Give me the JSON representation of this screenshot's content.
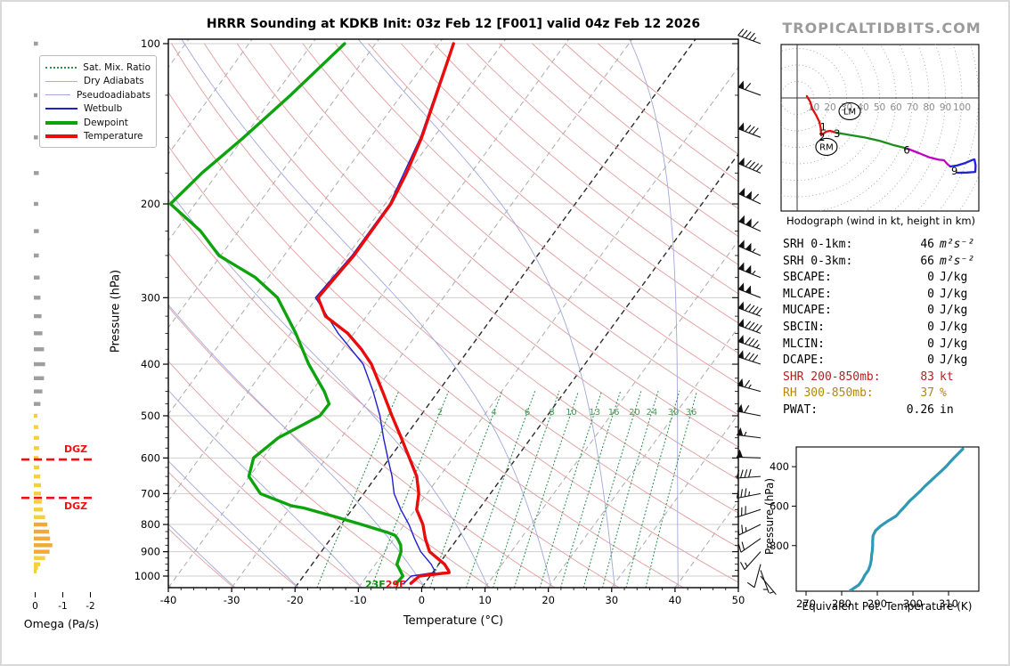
{
  "title": "HRRR Sounding at KDKB Init: 03z Feb 12 [F001] valid 04z Feb 12 2026",
  "logo": "TROPICALTIDBITS.COM",
  "legend": {
    "items": [
      {
        "label": "Sat. Mix. Ratio",
        "color": "#2e8f4e",
        "style": "dotted",
        "width": 2
      },
      {
        "label": "Dry Adiabats",
        "color": "#e29c9c",
        "style": "solid",
        "width": 1
      },
      {
        "label": "Pseudoadiabats",
        "color": "#a0a8dc",
        "style": "solid",
        "width": 1
      },
      {
        "label": "Wetbulb",
        "color": "#1f1fd1",
        "style": "solid",
        "width": 2
      },
      {
        "label": "Dewpoint",
        "color": "#0ca30c",
        "style": "solid",
        "width": 4
      },
      {
        "label": "Temperature",
        "color": "#ea0b0b",
        "style": "solid",
        "width": 4
      }
    ]
  },
  "axes": {
    "skewt_xlabel": "Temperature (°C)",
    "skewt_ylabel": "Pressure (hPa)",
    "omega_xlabel": "Omega (Pa/s)",
    "thetae_xlabel": "Equivalent Pot. Temperature (K)",
    "thetae_ylabel": "Pressure (hPa)",
    "hodograph_caption": "Hodograph (wind in kt, height in km)"
  },
  "surface_labels": {
    "dewpoint_f": "23F",
    "temperature_f": "29F"
  },
  "dgz_label": "DGZ",
  "stats": {
    "rows": [
      {
        "label": "SRH 0-1km:",
        "value": "46",
        "unit": "m²s⁻²",
        "math": true,
        "color": "#000000"
      },
      {
        "label": "SRH 0-3km:",
        "value": "66",
        "unit": "m²s⁻²",
        "math": true,
        "color": "#000000"
      },
      {
        "label": "SBCAPE:",
        "value": "0",
        "unit": "J/kg",
        "math": false,
        "color": "#000000"
      },
      {
        "label": "MLCAPE:",
        "value": "0",
        "unit": "J/kg",
        "math": false,
        "color": "#000000"
      },
      {
        "label": "MUCAPE:",
        "value": "0",
        "unit": "J/kg",
        "math": false,
        "color": "#000000"
      },
      {
        "label": "SBCIN:",
        "value": "0",
        "unit": "J/kg",
        "math": false,
        "color": "#000000"
      },
      {
        "label": "MLCIN:",
        "value": "0",
        "unit": "J/kg",
        "math": false,
        "color": "#000000"
      },
      {
        "label": "DCAPE:",
        "value": "0",
        "unit": "J/kg",
        "math": false,
        "color": "#000000"
      },
      {
        "label": "SHR 200-850mb:",
        "value": "83",
        "unit": "kt",
        "math": false,
        "color": "#b22222"
      },
      {
        "label": "RH 300-850mb:",
        "value": "37",
        "unit": "%",
        "math": false,
        "color": "#b8860b"
      },
      {
        "label": "PWAT:",
        "value": "0.26",
        "unit": "in",
        "math": false,
        "color": "#000000"
      }
    ]
  },
  "chart_data": {
    "skewt": {
      "type": "line",
      "x_ticks": [
        -40,
        -30,
        -20,
        -10,
        0,
        10,
        20,
        30,
        40,
        50
      ],
      "p_ticks": [
        100,
        200,
        300,
        400,
        500,
        600,
        700,
        800,
        900,
        1000
      ],
      "xlim": [
        -40,
        50
      ],
      "plim": [
        100,
        1051
      ],
      "mixing_ratio_values": [
        1,
        2,
        4,
        6,
        8,
        10,
        13,
        16,
        20,
        24,
        30,
        36
      ],
      "series": {
        "temperature": [
          [
            100,
            -57.7
          ],
          [
            125,
            -54.5
          ],
          [
            150,
            -51.9
          ],
          [
            175,
            -50.2
          ],
          [
            200,
            -49.1
          ],
          [
            250,
            -49.0
          ],
          [
            300,
            -49.8
          ],
          [
            325,
            -46.5
          ],
          [
            350,
            -41.0
          ],
          [
            375,
            -37.0
          ],
          [
            400,
            -33.7
          ],
          [
            450,
            -28.8
          ],
          [
            500,
            -24.5
          ],
          [
            550,
            -20.5
          ],
          [
            600,
            -16.9
          ],
          [
            650,
            -13.6
          ],
          [
            700,
            -11.3
          ],
          [
            750,
            -9.8
          ],
          [
            800,
            -7.1
          ],
          [
            850,
            -5.1
          ],
          [
            900,
            -2.9
          ],
          [
            950,
            0.9
          ],
          [
            975,
            2.2
          ],
          [
            985,
            2.6
          ],
          [
            1000,
            -1.7
          ],
          [
            1032,
            -2.2
          ]
        ],
        "dewpoint": [
          [
            100,
            -74.9
          ],
          [
            125,
            -77.5
          ],
          [
            150,
            -80.0
          ],
          [
            175,
            -82.5
          ],
          [
            200,
            -83.9
          ],
          [
            225,
            -76.0
          ],
          [
            250,
            -70.3
          ],
          [
            275,
            -62.0
          ],
          [
            300,
            -56.2
          ],
          [
            350,
            -49.2
          ],
          [
            400,
            -43.6
          ],
          [
            450,
            -38.0
          ],
          [
            475,
            -35.8
          ],
          [
            500,
            -35.9
          ],
          [
            550,
            -39.9
          ],
          [
            600,
            -41.5
          ],
          [
            650,
            -40.1
          ],
          [
            700,
            -36.3
          ],
          [
            738,
            -30.0
          ],
          [
            745,
            -27.8
          ],
          [
            775,
            -21.6
          ],
          [
            800,
            -16.8
          ],
          [
            827,
            -11.9
          ],
          [
            838,
            -10.3
          ],
          [
            850,
            -9.5
          ],
          [
            875,
            -8.2
          ],
          [
            900,
            -7.4
          ],
          [
            950,
            -6.6
          ],
          [
            1000,
            -4.3
          ],
          [
            1032,
            -4.5
          ]
        ],
        "wetbulb": [
          [
            100,
            -57.8
          ],
          [
            150,
            -52.1
          ],
          [
            200,
            -49.3
          ],
          [
            250,
            -49.3
          ],
          [
            300,
            -50.2
          ],
          [
            350,
            -42.5
          ],
          [
            400,
            -35.0
          ],
          [
            450,
            -30.3
          ],
          [
            500,
            -26.4
          ],
          [
            550,
            -23.3
          ],
          [
            600,
            -20.3
          ],
          [
            650,
            -17.5
          ],
          [
            700,
            -15.2
          ],
          [
            750,
            -12.3
          ],
          [
            800,
            -9.3
          ],
          [
            850,
            -6.8
          ],
          [
            900,
            -4.3
          ],
          [
            950,
            -1.2
          ],
          [
            975,
            0.0
          ],
          [
            985,
            0.3
          ],
          [
            1000,
            -3.0
          ],
          [
            1032,
            -3.3
          ]
        ]
      }
    },
    "omega": {
      "type": "bar",
      "x_ticks": [
        0,
        -1,
        -2
      ],
      "dgz_pressures": [
        604,
        713
      ],
      "bars_gray": [
        [
          100,
          -0.1
        ],
        [
          125,
          -0.08
        ],
        [
          150,
          -0.1
        ],
        [
          175,
          -0.13
        ],
        [
          200,
          -0.11
        ],
        [
          225,
          -0.13
        ],
        [
          250,
          -0.13
        ],
        [
          275,
          -0.16
        ],
        [
          300,
          -0.19
        ],
        [
          325,
          -0.23
        ],
        [
          350,
          -0.26
        ],
        [
          375,
          -0.32
        ],
        [
          400,
          -0.36
        ],
        [
          425,
          -0.32
        ],
        [
          450,
          -0.26
        ],
        [
          475,
          -0.19
        ]
      ],
      "bars_yellow": [
        [
          500,
          -0.08
        ],
        [
          525,
          -0.11
        ],
        [
          550,
          -0.14
        ],
        [
          575,
          -0.14
        ],
        [
          600,
          -0.12
        ],
        [
          625,
          -0.15
        ],
        [
          650,
          -0.18
        ],
        [
          675,
          -0.21
        ],
        [
          700,
          -0.21
        ],
        [
          725,
          -0.24
        ],
        [
          750,
          -0.28
        ],
        [
          775,
          -0.36
        ],
        [
          800,
          -0.44
        ],
        [
          825,
          -0.5
        ],
        [
          850,
          -0.54
        ],
        [
          875,
          -0.62
        ],
        [
          900,
          -0.52
        ],
        [
          925,
          -0.36
        ],
        [
          950,
          -0.18
        ],
        [
          965,
          -0.1
        ],
        [
          980,
          -0.05
        ]
      ]
    },
    "wind_barbs": [
      [
        100,
        45,
        290
      ],
      [
        125,
        60,
        290
      ],
      [
        150,
        80,
        291
      ],
      [
        175,
        90,
        293
      ],
      [
        200,
        110,
        295
      ],
      [
        225,
        110,
        294
      ],
      [
        250,
        105,
        293
      ],
      [
        275,
        105,
        292
      ],
      [
        300,
        100,
        291
      ],
      [
        325,
        90,
        290
      ],
      [
        350,
        90,
        290
      ],
      [
        375,
        85,
        289
      ],
      [
        400,
        80,
        288
      ],
      [
        450,
        65,
        285
      ],
      [
        500,
        60,
        281
      ],
      [
        550,
        55,
        277
      ],
      [
        600,
        50,
        272
      ],
      [
        650,
        40,
        266
      ],
      [
        700,
        35,
        259
      ],
      [
        750,
        30,
        252
      ],
      [
        800,
        25,
        244
      ],
      [
        850,
        20,
        235
      ],
      [
        900,
        15,
        222
      ],
      [
        950,
        10,
        195
      ],
      [
        975,
        8,
        160
      ],
      [
        1000,
        5,
        140
      ]
    ],
    "hodograph": {
      "type": "line",
      "ring_spacing_kt": 10,
      "ring_labels": [
        10,
        20,
        30,
        40,
        50,
        60,
        70,
        80,
        90,
        100
      ],
      "segments": [
        {
          "color": "#e01010",
          "points": [
            [
              5.9,
              1.1
            ],
            [
              8,
              -2.5
            ],
            [
              9.2,
              -6.5
            ],
            [
              11.5,
              -10.5
            ],
            [
              13.5,
              -14.6
            ],
            [
              14.3,
              -18.5
            ],
            [
              14.6,
              -22.7
            ],
            [
              17.5,
              -20.5
            ],
            [
              20,
              -20
            ],
            [
              23.8,
              -21.1
            ]
          ]
        },
        {
          "color": "#1a8f1a",
          "points": [
            [
              23.8,
              -21.1
            ],
            [
              32,
              -22.5
            ],
            [
              41,
              -24
            ],
            [
              50,
              -26
            ],
            [
              58,
              -28.5
            ],
            [
              64,
              -30
            ],
            [
              67,
              -30.8
            ]
          ]
        },
        {
          "color": "#c000c0",
          "points": [
            [
              67,
              -30.8
            ],
            [
              74,
              -33.5
            ],
            [
              80,
              -36
            ],
            [
              86,
              -37.5
            ],
            [
              89,
              -37.8
            ],
            [
              91.5,
              -40.5
            ],
            [
              93,
              -41.6
            ]
          ]
        },
        {
          "color": "#2020dd",
          "points": [
            [
              93,
              -41.6
            ],
            [
              97,
              -41
            ],
            [
              102,
              -39.5
            ],
            [
              106,
              -37.8
            ],
            [
              107.6,
              -37.3
            ],
            [
              108.3,
              -41
            ],
            [
              108.1,
              -44.9
            ],
            [
              103,
              -45.3
            ],
            [
              97.3,
              -45.4
            ]
          ]
        }
      ],
      "height_labels": [
        {
          "km": "1",
          "u": 15.8,
          "v": -17.5
        },
        {
          "km": "2",
          "u": 15.0,
          "v": -23.8
        },
        {
          "km": "3",
          "u": 24.2,
          "v": -21.6
        },
        {
          "km": "6",
          "u": 66.5,
          "v": -31.5
        },
        {
          "km": "9",
          "u": 95.5,
          "v": -44.2
        }
      ],
      "markers": [
        {
          "label": "RM",
          "u": 17.8,
          "v": -29.7
        },
        {
          "label": "LM",
          "u": 31.9,
          "v": -8.1
        }
      ]
    },
    "thetae": {
      "type": "line",
      "x_ticks": [
        270,
        280,
        290,
        300,
        310
      ],
      "p_ticks": [
        400,
        600,
        800
      ],
      "color": "#2f99b4",
      "points": [
        [
          310,
          314
        ],
        [
          325,
          313.2
        ],
        [
          350,
          311.8
        ],
        [
          375,
          310.5
        ],
        [
          400,
          309.3
        ],
        [
          425,
          307.8
        ],
        [
          450,
          306.3
        ],
        [
          475,
          304.8
        ],
        [
          500,
          303.3
        ],
        [
          525,
          302
        ],
        [
          550,
          300.5
        ],
        [
          575,
          299
        ],
        [
          600,
          297.8
        ],
        [
          625,
          296.5
        ],
        [
          650,
          295.3
        ],
        [
          675,
          293
        ],
        [
          700,
          291
        ],
        [
          725,
          289.5
        ],
        [
          750,
          288.8
        ],
        [
          775,
          288.7
        ],
        [
          800,
          288.7
        ],
        [
          825,
          288.6
        ],
        [
          850,
          288.4
        ],
        [
          875,
          288.3
        ],
        [
          900,
          288.0
        ],
        [
          925,
          287.5
        ],
        [
          950,
          286.5
        ],
        [
          975,
          285.8
        ],
        [
          1000,
          284.8
        ],
        [
          1015,
          283.5
        ],
        [
          1030,
          282.3
        ]
      ]
    }
  }
}
